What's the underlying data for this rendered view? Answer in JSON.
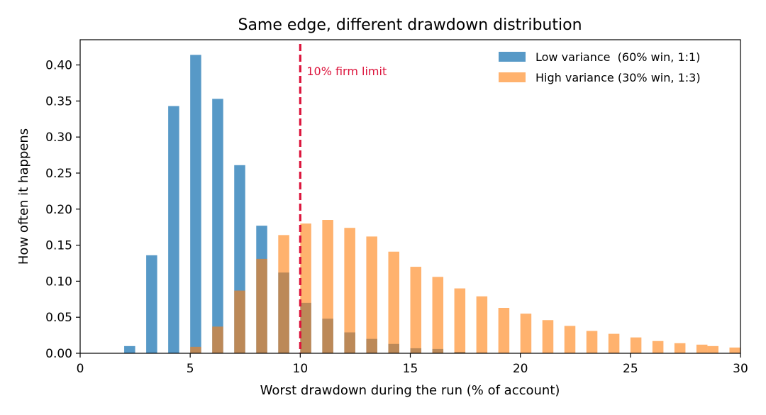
{
  "chart_data": {
    "type": "bar",
    "title": "Same edge, different drawdown distribution",
    "xlabel": "Worst drawdown during the run (% of account)",
    "ylabel": "How often it happens",
    "xlim": [
      0,
      30
    ],
    "ylim": [
      0,
      0.435
    ],
    "x_ticks": [
      0,
      5,
      10,
      15,
      20,
      25,
      30
    ],
    "y_ticks": [
      0.0,
      0.05,
      0.1,
      0.15,
      0.2,
      0.25,
      0.3,
      0.35,
      0.4
    ],
    "grid": false,
    "legend_position": "top-right",
    "bar_width": 0.5,
    "series": [
      {
        "name": "Low variance  (60% win, 1:1)",
        "color": "#1f77b4",
        "opacity": 0.75,
        "x": [
          2.25,
          3.25,
          4.25,
          5.25,
          6.25,
          7.25,
          8.25,
          9.25,
          10.25,
          11.25,
          12.25,
          13.25,
          14.25,
          15.25,
          16.25,
          17.25,
          18.25
        ],
        "values": [
          0.01,
          0.136,
          0.343,
          0.414,
          0.353,
          0.261,
          0.177,
          0.112,
          0.07,
          0.048,
          0.029,
          0.02,
          0.013,
          0.007,
          0.006,
          0.002,
          0.001
        ]
      },
      {
        "name": "High variance (30% win, 1:3)",
        "color": "#ff7f0e",
        "opacity": 0.6,
        "x": [
          5.25,
          6.25,
          7.25,
          8.25,
          9.25,
          10.25,
          11.25,
          12.25,
          13.25,
          14.25,
          15.25,
          16.25,
          17.25,
          18.25,
          19.25,
          20.25,
          21.25,
          22.25,
          23.25,
          24.25,
          25.25,
          26.25,
          27.25,
          28.25,
          28.75,
          29.75
        ],
        "values": [
          0.009,
          0.037,
          0.087,
          0.131,
          0.164,
          0.18,
          0.185,
          0.174,
          0.162,
          0.141,
          0.12,
          0.106,
          0.09,
          0.079,
          0.063,
          0.055,
          0.046,
          0.038,
          0.031,
          0.027,
          0.022,
          0.017,
          0.014,
          0.012,
          0.01,
          0.008
        ]
      }
    ],
    "reference_line": {
      "x": 10,
      "label": "10% firm limit",
      "color": "#dc143c",
      "style": "dashed"
    }
  }
}
